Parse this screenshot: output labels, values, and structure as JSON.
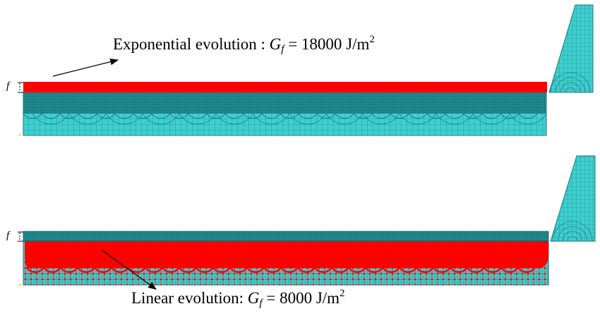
{
  "top_panel": {
    "caption_prefix": "Exponential evolution : ",
    "symbol": "G",
    "subscript": "f",
    "relation": " = 18000 J/m",
    "superscript": "2",
    "thickness_label": "f"
  },
  "bottom_panel": {
    "caption_prefix": "Linear evolution: ",
    "symbol": "G",
    "subscript": "f",
    "relation": " = 8000 J/m",
    "superscript": "2",
    "thickness_label": "f"
  },
  "colors": {
    "mesh_fill": "#3fcfcf",
    "mesh_line": "#1a7a80",
    "dense_band": "#1f8a8e",
    "damage": "#ff0000",
    "arrow": "#000000"
  }
}
